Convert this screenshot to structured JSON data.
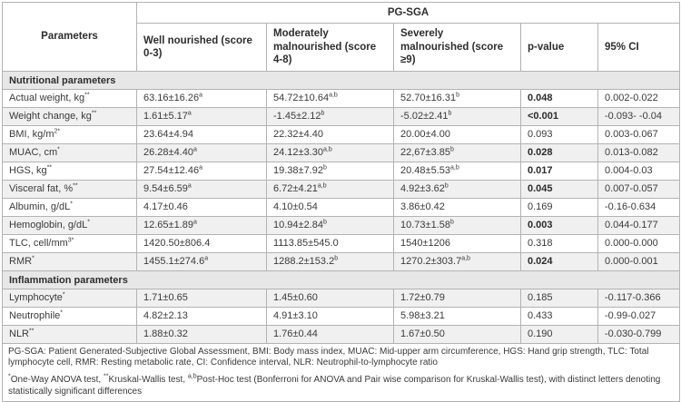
{
  "colors": {
    "border_outer": "#9a9a9a",
    "border_inner": "#b3b3b3",
    "section_header_bg": "#e7e7e7",
    "shaded_row_bg": "#f0f0f0",
    "text": "#3a3a3a"
  },
  "table": {
    "header": {
      "parameters_label": "Parameters",
      "group_label": "PG-SGA",
      "columns": [
        "Well nourished (score 0-3)",
        "Moderately malnourished (score 4-8)",
        "Severely malnourished (score ≥9)",
        "p-value",
        "95% CI"
      ]
    },
    "sections": [
      {
        "title": "Nutritional parameters",
        "rows": [
          {
            "param": "Actual weight, kg",
            "param_sup": "**",
            "cells": [
              {
                "v": "63.16±16.26",
                "sup": "a"
              },
              {
                "v": "54.72±10.64",
                "sup": "a,b"
              },
              {
                "v": "52.70±16.31",
                "sup": "b"
              }
            ],
            "p": "0.048",
            "p_bold": true,
            "ci": "0.002-0.022",
            "shaded": false
          },
          {
            "param": "Weight change, kg",
            "param_sup": "**",
            "cells": [
              {
                "v": "1.61±5.17",
                "sup": "a"
              },
              {
                "v": "-1.45±2.12",
                "sup": "b"
              },
              {
                "v": "-5.02±2.41",
                "sup": "b"
              }
            ],
            "p": "<0.001",
            "p_bold": true,
            "ci": "-0.093- -0.04",
            "shaded": true
          },
          {
            "param": "BMI, kg/m",
            "param_sup": "2*",
            "cells": [
              {
                "v": "23.64±4.94",
                "sup": ""
              },
              {
                "v": "22.32±4.40",
                "sup": ""
              },
              {
                "v": "20.00±4.00",
                "sup": ""
              }
            ],
            "p": "0.093",
            "p_bold": false,
            "ci": "0.003-0.067",
            "shaded": false
          },
          {
            "param": "MUAC, cm",
            "param_sup": "*",
            "cells": [
              {
                "v": "26.28±4.40",
                "sup": "a"
              },
              {
                "v": "24.12±3.30",
                "sup": "a,b"
              },
              {
                "v": "22,67±3.85",
                "sup": "b"
              }
            ],
            "p": "0.028",
            "p_bold": true,
            "ci": "0.013-0.082",
            "shaded": true
          },
          {
            "param": "HGS, kg",
            "param_sup": "**",
            "cells": [
              {
                "v": "27.54±12.46",
                "sup": "a"
              },
              {
                "v": "19.38±7.92",
                "sup": "b"
              },
              {
                "v": "20.48±5.53",
                "sup": "a,b"
              }
            ],
            "p": "0.017",
            "p_bold": true,
            "ci": "0.004-0.03",
            "shaded": false
          },
          {
            "param": "Visceral fat, %",
            "param_sup": "**",
            "cells": [
              {
                "v": "9.54±6.59",
                "sup": "a"
              },
              {
                "v": "6.72±4.21",
                "sup": "a,b"
              },
              {
                "v": "4.92±3.62",
                "sup": "b"
              }
            ],
            "p": "0.045",
            "p_bold": true,
            "ci": "0.007-0.057",
            "shaded": true
          },
          {
            "param": "Albumin, g/dL",
            "param_sup": "*",
            "cells": [
              {
                "v": "4.17±0.46",
                "sup": ""
              },
              {
                "v": "4.10±0.54",
                "sup": ""
              },
              {
                "v": "3.86±0.42",
                "sup": ""
              }
            ],
            "p": "0.169",
            "p_bold": false,
            "ci": "-0.16-0.634",
            "shaded": false
          },
          {
            "param": "Hemoglobin, g/dL",
            "param_sup": "*",
            "cells": [
              {
                "v": "12.65±1.89",
                "sup": "a"
              },
              {
                "v": "10.94±2.84",
                "sup": "b"
              },
              {
                "v": "10.73±1.58",
                "sup": "b"
              }
            ],
            "p": "0.003",
            "p_bold": true,
            "ci": "0.044-0.177",
            "shaded": true
          },
          {
            "param": "TLC, cell/mm",
            "param_sup": "3*",
            "cells": [
              {
                "v": "1420.50±806.4",
                "sup": ""
              },
              {
                "v": "1113.85±545.0",
                "sup": ""
              },
              {
                "v": "1540±1206",
                "sup": ""
              }
            ],
            "p": "0.318",
            "p_bold": false,
            "ci": "0.000-0.000",
            "shaded": false
          },
          {
            "param": "RMR",
            "param_sup": "*",
            "cells": [
              {
                "v": "1455.1±274.6",
                "sup": "a"
              },
              {
                "v": "1288.2±153.2",
                "sup": "b"
              },
              {
                "v": "1270.2±303.7",
                "sup": "a,b"
              }
            ],
            "p": "0.024",
            "p_bold": true,
            "ci": "0.000-0.001",
            "shaded": true
          }
        ]
      },
      {
        "title": "Inflammation parameters",
        "rows": [
          {
            "param": "Lymphocyte",
            "param_sup": "*",
            "cells": [
              {
                "v": "1.71±0.65",
                "sup": ""
              },
              {
                "v": "1.45±0.60",
                "sup": ""
              },
              {
                "v": "1.72±0.79",
                "sup": ""
              }
            ],
            "p": "0.185",
            "p_bold": false,
            "ci": "-0.117-0.366",
            "shaded": true
          },
          {
            "param": "Neutrophile",
            "param_sup": "*",
            "cells": [
              {
                "v": "4.82±2.13",
                "sup": ""
              },
              {
                "v": "4.91±3.10",
                "sup": ""
              },
              {
                "v": "5.98±3.21",
                "sup": ""
              }
            ],
            "p": "0.433",
            "p_bold": false,
            "ci": "-0.99-0.027",
            "shaded": false
          },
          {
            "param": "NLR",
            "param_sup": "**",
            "cells": [
              {
                "v": "1.88±0.32",
                "sup": ""
              },
              {
                "v": "1.76±0.44",
                "sup": ""
              },
              {
                "v": "1.67±0.50",
                "sup": ""
              }
            ],
            "p": "0.190",
            "p_bold": false,
            "ci": "-0.030-0.799",
            "shaded": true
          }
        ]
      }
    ],
    "footnotes": {
      "abbreviations": "PG-SGA: Patient Generated-Subjective Global Assessment, BMI: Body mass index, MUAC: Mid-upper arm circumference, HGS: Hand grip strength, TLC: Total lymphocyte cell, RMR: Resting metabolic rate, CI: Confidence interval, NLR: Neutrophil-to-lymphocyte ratio",
      "stats_parts": [
        {
          "sup": "*"
        },
        {
          "t": "One-Way ANOVA test, "
        },
        {
          "sup": "**"
        },
        {
          "t": "Kruskal-Wallis test, "
        },
        {
          "sup": "a,b"
        },
        {
          "t": "Post-Hoc test (Bonferroni for ANOVA and Pair wise comparison for Kruskal-Wallis test), with distinct letters denoting statistically significant differences"
        }
      ]
    }
  }
}
